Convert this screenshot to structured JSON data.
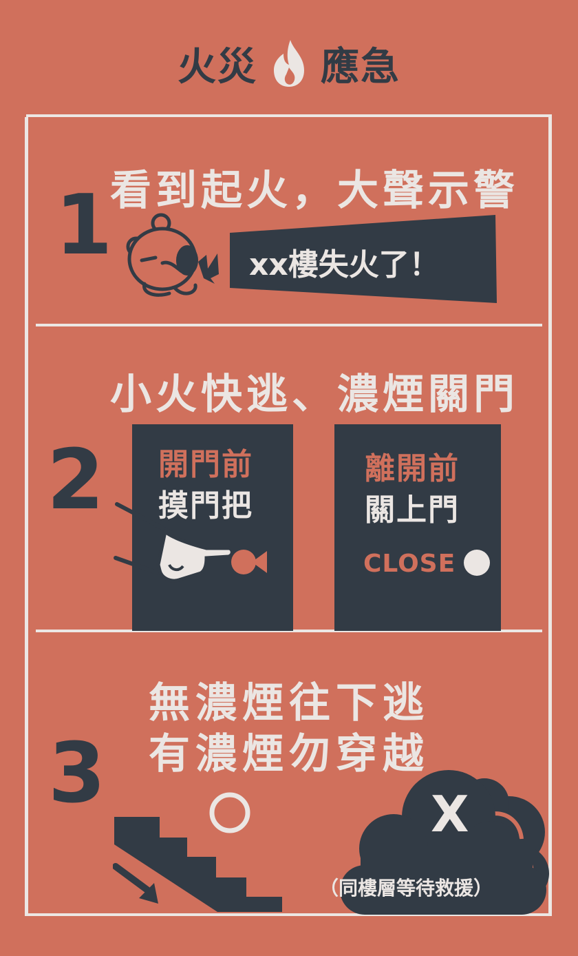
{
  "header": {
    "title_left": "火災",
    "title_right": "應急",
    "icon": "flame-icon"
  },
  "steps": [
    {
      "number": "1",
      "heading": "看到起火，大聲示警",
      "shout": "xx樓失火了！",
      "icons": [
        "bear-shouting-icon",
        "megaphone-icon"
      ]
    },
    {
      "number": "2",
      "heading": "小火快逃、濃煙關門",
      "doors": [
        {
          "line1": "開門前",
          "line2": "摸門把",
          "icons": [
            "hand-icon",
            "door-knob-icon"
          ]
        },
        {
          "line1": "離開前",
          "line2": "關上門",
          "close_label": "CLOSE",
          "icons": [
            "door-knob-icon"
          ]
        }
      ]
    },
    {
      "number": "3",
      "heading_line1": "無濃煙往下逃",
      "heading_line2": "有濃煙勿穿越",
      "ok_mark": "○",
      "no_mark": "X",
      "note": "（同樓層等待救援）",
      "icons": [
        "stairs-down-icon",
        "arrow-down-right-icon",
        "smoke-cloud-icon"
      ]
    }
  ],
  "colors": {
    "background": "#d0705c",
    "dark": "#323b45",
    "light": "#ebe6e3"
  }
}
